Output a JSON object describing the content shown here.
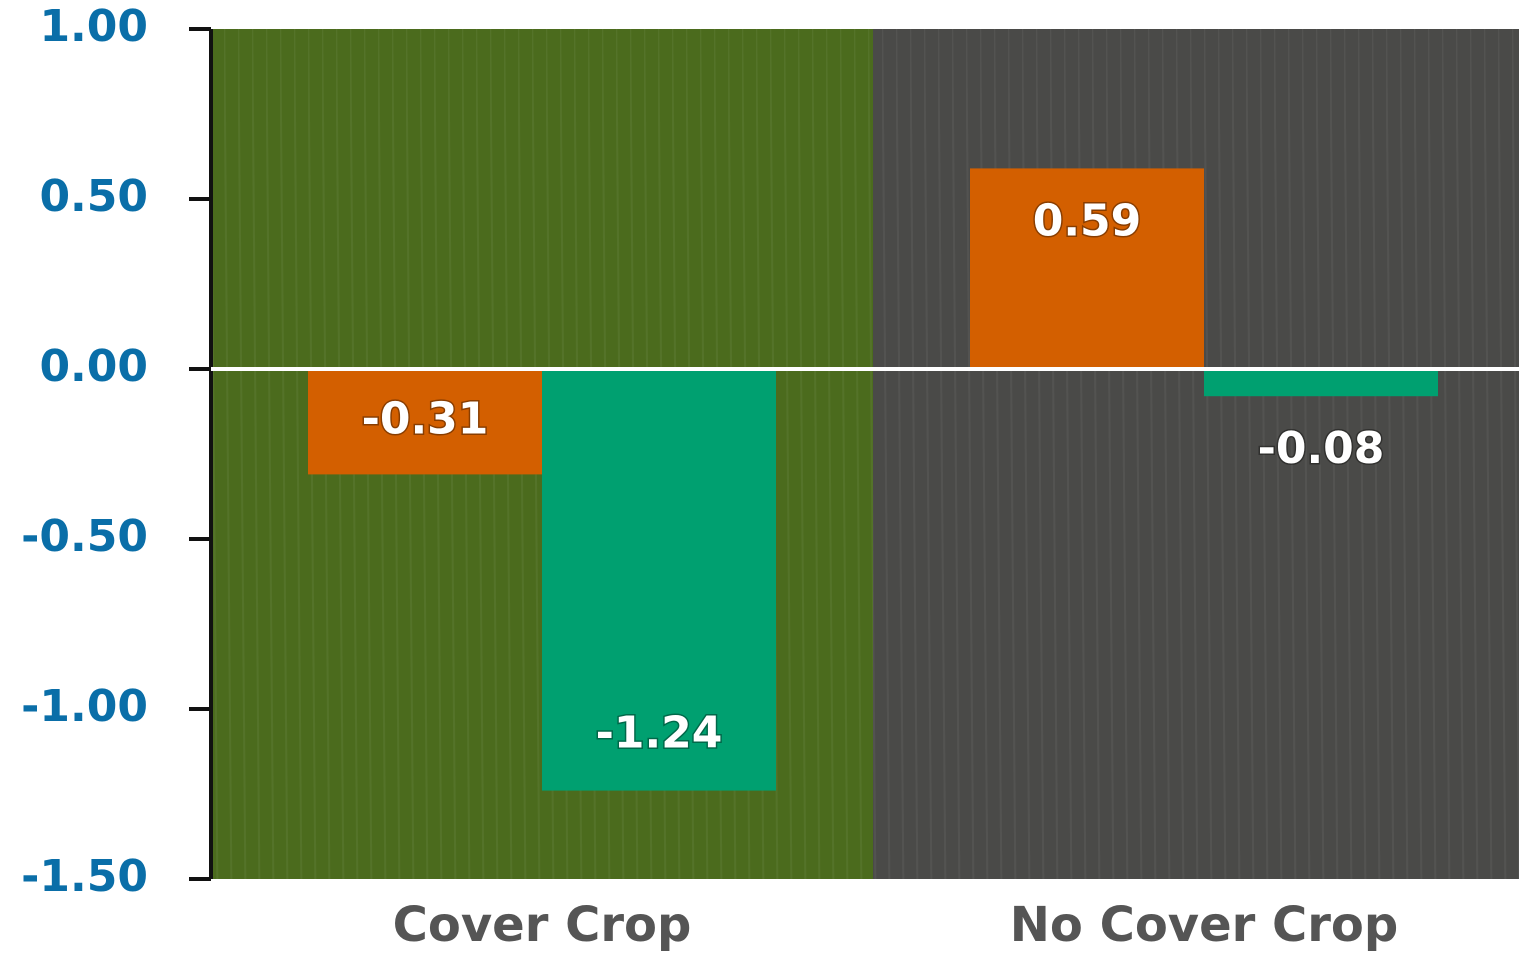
{
  "chart_data": {
    "type": "bar",
    "categories": [
      "Cover Crop",
      "No Cover Crop"
    ],
    "series": [
      {
        "color": "#d35f00",
        "values": [
          -0.31,
          0.59
        ]
      },
      {
        "color": "#00a070",
        "values": [
          -1.24,
          -0.08
        ]
      }
    ],
    "ylim": [
      -1.5,
      1
    ],
    "yticks": [
      {
        "value": 1,
        "label": "1.00"
      },
      {
        "value": 0.5,
        "label": "0.50"
      },
      {
        "value": 0,
        "label": "0.00"
      },
      {
        "value": -0.5,
        "label": "-0.50"
      },
      {
        "value": -1,
        "label": "-1.00"
      },
      {
        "value": -1.5,
        "label": "-1.50"
      }
    ],
    "grid": false
  }
}
